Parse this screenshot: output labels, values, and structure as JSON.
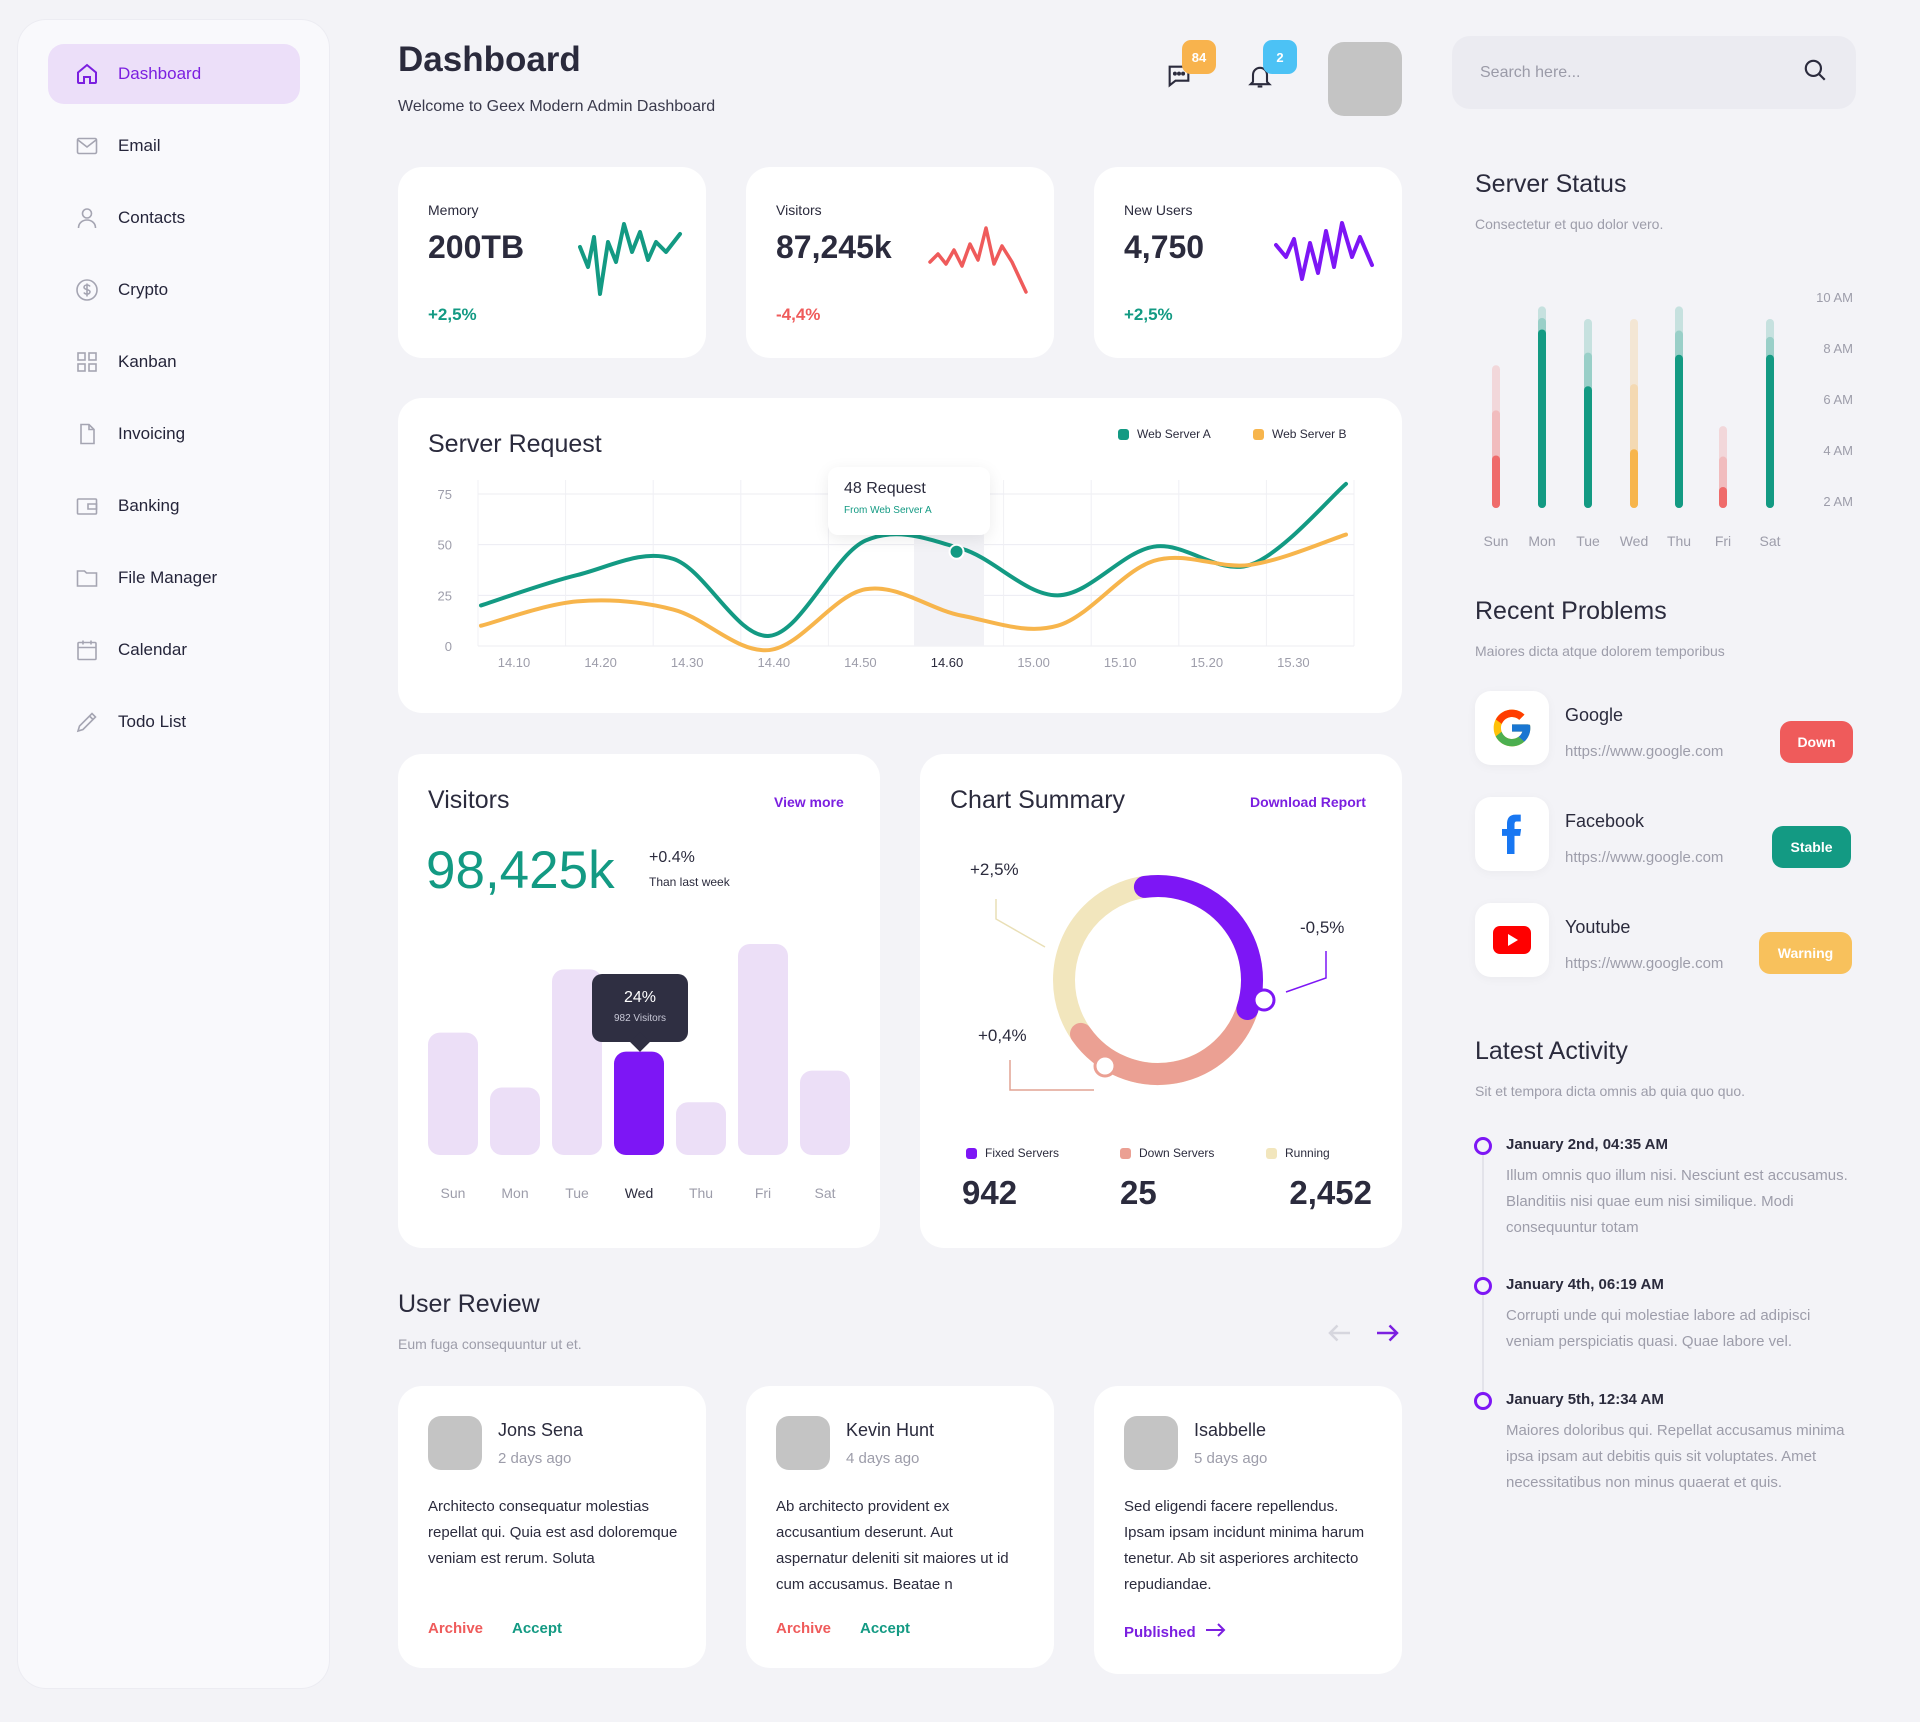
{
  "sidebar": {
    "items": [
      {
        "label": "Dashboard",
        "icon": "home-icon",
        "active": true
      },
      {
        "label": "Email",
        "icon": "mail-icon"
      },
      {
        "label": "Contacts",
        "icon": "user-icon"
      },
      {
        "label": "Crypto",
        "icon": "dollar-circle-icon"
      },
      {
        "label": "Kanban",
        "icon": "grid-icon"
      },
      {
        "label": "Invoicing",
        "icon": "document-icon"
      },
      {
        "label": "Banking",
        "icon": "wallet-icon"
      },
      {
        "label": "File Manager",
        "icon": "folder-icon"
      },
      {
        "label": "Calendar",
        "icon": "calendar-icon"
      },
      {
        "label": "Todo List",
        "icon": "pencil-icon"
      }
    ]
  },
  "header": {
    "title": "Dashboard",
    "subtitle": "Welcome to Geex Modern Admin Dashboard",
    "messages_count": "84",
    "notifications_count": "2",
    "search_placeholder": "Search here..."
  },
  "stats": [
    {
      "label": "Memory",
      "value": "200TB",
      "change": "+2,5%",
      "color": "#139a83"
    },
    {
      "label": "Visitors",
      "value": "87,245k",
      "change": "-4,4%",
      "color": "#ef5b5b"
    },
    {
      "label": "New Users",
      "value": "4,750",
      "change": "+2,5%",
      "color": "#139a83"
    }
  ],
  "server_request": {
    "title": "Server Request",
    "legend_a": "Web Server A",
    "legend_b": "Web Server B",
    "tooltip_title": "48 Request",
    "tooltip_sub": "From Web Server A",
    "y_ticks": [
      "75",
      "50",
      "25",
      "0"
    ],
    "x_ticks": [
      "14.10",
      "14.20",
      "14.30",
      "14.40",
      "14.50",
      "14.60",
      "15.00",
      "15.10",
      "15.20",
      "15.30"
    ]
  },
  "visitors": {
    "title": "Visitors",
    "link": "View more",
    "total": "98,425k",
    "change": "+0.4%",
    "change_note": "Than last week",
    "tooltip_value": "24%",
    "tooltip_sub": "982 Visitors",
    "days": [
      "Sun",
      "Mon",
      "Tue",
      "Wed",
      "Thu",
      "Fri",
      "Sat"
    ]
  },
  "chart_summary": {
    "title": "Chart Summary",
    "link": "Download Report",
    "label_top": "+2,5%",
    "label_right": "-0,5%",
    "label_left": "+0,4%",
    "legend": [
      {
        "label": "Fixed Servers",
        "value": "942",
        "color": "#7d16f5"
      },
      {
        "label": "Down Servers",
        "value": "25",
        "color": "#eba093"
      },
      {
        "label": "Running",
        "value": "2,452",
        "color": "#f2e6bd"
      }
    ]
  },
  "chart_data": [
    {
      "type": "line",
      "title": "Server Request",
      "x": [
        "14.10",
        "14.20",
        "14.30",
        "14.40",
        "14.50",
        "14.60",
        "15.00",
        "15.10",
        "15.20",
        "15.30"
      ],
      "ylim": [
        0,
        75
      ],
      "series": [
        {
          "name": "Web Server A",
          "color": "#139a83",
          "values": [
            20,
            35,
            43,
            5,
            52,
            48,
            25,
            49,
            40,
            80
          ]
        },
        {
          "name": "Web Server B",
          "color": "#f7b54c",
          "values": [
            10,
            22,
            18,
            -2,
            28,
            15,
            10,
            42,
            40,
            55
          ]
        }
      ]
    },
    {
      "type": "bar",
      "title": "Visitors",
      "categories": [
        "Sun",
        "Mon",
        "Tue",
        "Wed",
        "Thu",
        "Fri",
        "Sat"
      ],
      "values": [
        58,
        32,
        88,
        49,
        25,
        100,
        40
      ],
      "highlight": "Wed",
      "color": "#ecdff7",
      "highlight_color": "#7d16f5"
    },
    {
      "type": "pie",
      "title": "Chart Summary",
      "categories": [
        "Fixed Servers",
        "Down Servers",
        "Running"
      ],
      "values": [
        942,
        25,
        2452
      ]
    },
    {
      "type": "bar",
      "title": "Server Status",
      "categories": [
        "Sun",
        "Mon",
        "Tue",
        "Wed",
        "Thu",
        "Fri",
        "Sat"
      ],
      "y_ticks": [
        "10 AM",
        "8 AM",
        "6 AM",
        "4 AM",
        "2 AM"
      ],
      "values": [
        2.5,
        8.5,
        5.8,
        2.8,
        7.3,
        1.0,
        7.3
      ],
      "totals": [
        6.8,
        9.6,
        9.0,
        9.0,
        9.6,
        3.9,
        9.0
      ],
      "colors": [
        "#ef6b6b",
        "#139a83",
        "#139a83",
        "#f7b54c",
        "#139a83",
        "#ef6b6b",
        "#139a83"
      ]
    }
  ],
  "user_review": {
    "title": "User Review",
    "subtitle": "Eum fuga consequuntur ut et.",
    "reviews": [
      {
        "name": "Jons Sena",
        "ago": "2 days ago",
        "text": "Architecto consequatur molestias repellat qui. Quia est asd doloremque veniam est rerum. Soluta",
        "archive": "Archive",
        "accept": "Accept"
      },
      {
        "name": "Kevin Hunt",
        "ago": "4 days ago",
        "text": "Ab architecto provident ex accusantium deserunt. Aut aspernatur deleniti sit maiores ut id cum accusamus. Beatae n",
        "archive": "Archive",
        "accept": "Accept"
      },
      {
        "name": "Isabbelle",
        "ago": "5 days ago",
        "text": "Sed eligendi facere repellendus. Ipsam ipsam incidunt minima harum tenetur. Ab sit asperiores architecto repudiandae.",
        "published": "Published"
      }
    ]
  },
  "server_status": {
    "title": "Server Status",
    "subtitle": "Consectetur et quo dolor vero."
  },
  "recent_problems": {
    "title": "Recent Problems",
    "subtitle": "Maiores dicta atque dolorem temporibus",
    "items": [
      {
        "name": "Google",
        "url": "https://www.google.com",
        "status": "Down",
        "color": "#ef5b5b"
      },
      {
        "name": "Facebook",
        "url": "https://www.google.com",
        "status": "Stable",
        "color": "#139a83"
      },
      {
        "name": "Youtube",
        "url": "https://www.google.com",
        "status": "Warning",
        "color": "#f8c15c"
      }
    ]
  },
  "latest_activity": {
    "title": "Latest Activity",
    "subtitle": "Sit et tempora dicta omnis ab quia quo quo.",
    "items": [
      {
        "time": "January 2nd, 04:35 AM",
        "text": "Illum omnis quo illum nisi. Nesciunt est accusamus. Blanditiis nisi quae eum nisi similique. Modi consequuntur totam"
      },
      {
        "time": "January 4th, 06:19 AM",
        "text": "Corrupti unde qui molestiae labore ad adipisci veniam perspiciatis quasi. Quae labore vel."
      },
      {
        "time": "January 5th, 12:34 AM",
        "text": "Maiores doloribus qui. Repellat accusamus minima ipsa ipsam aut debitis quis sit voluptates. Amet necessitatibus non minus quaerat et quis."
      }
    ]
  }
}
